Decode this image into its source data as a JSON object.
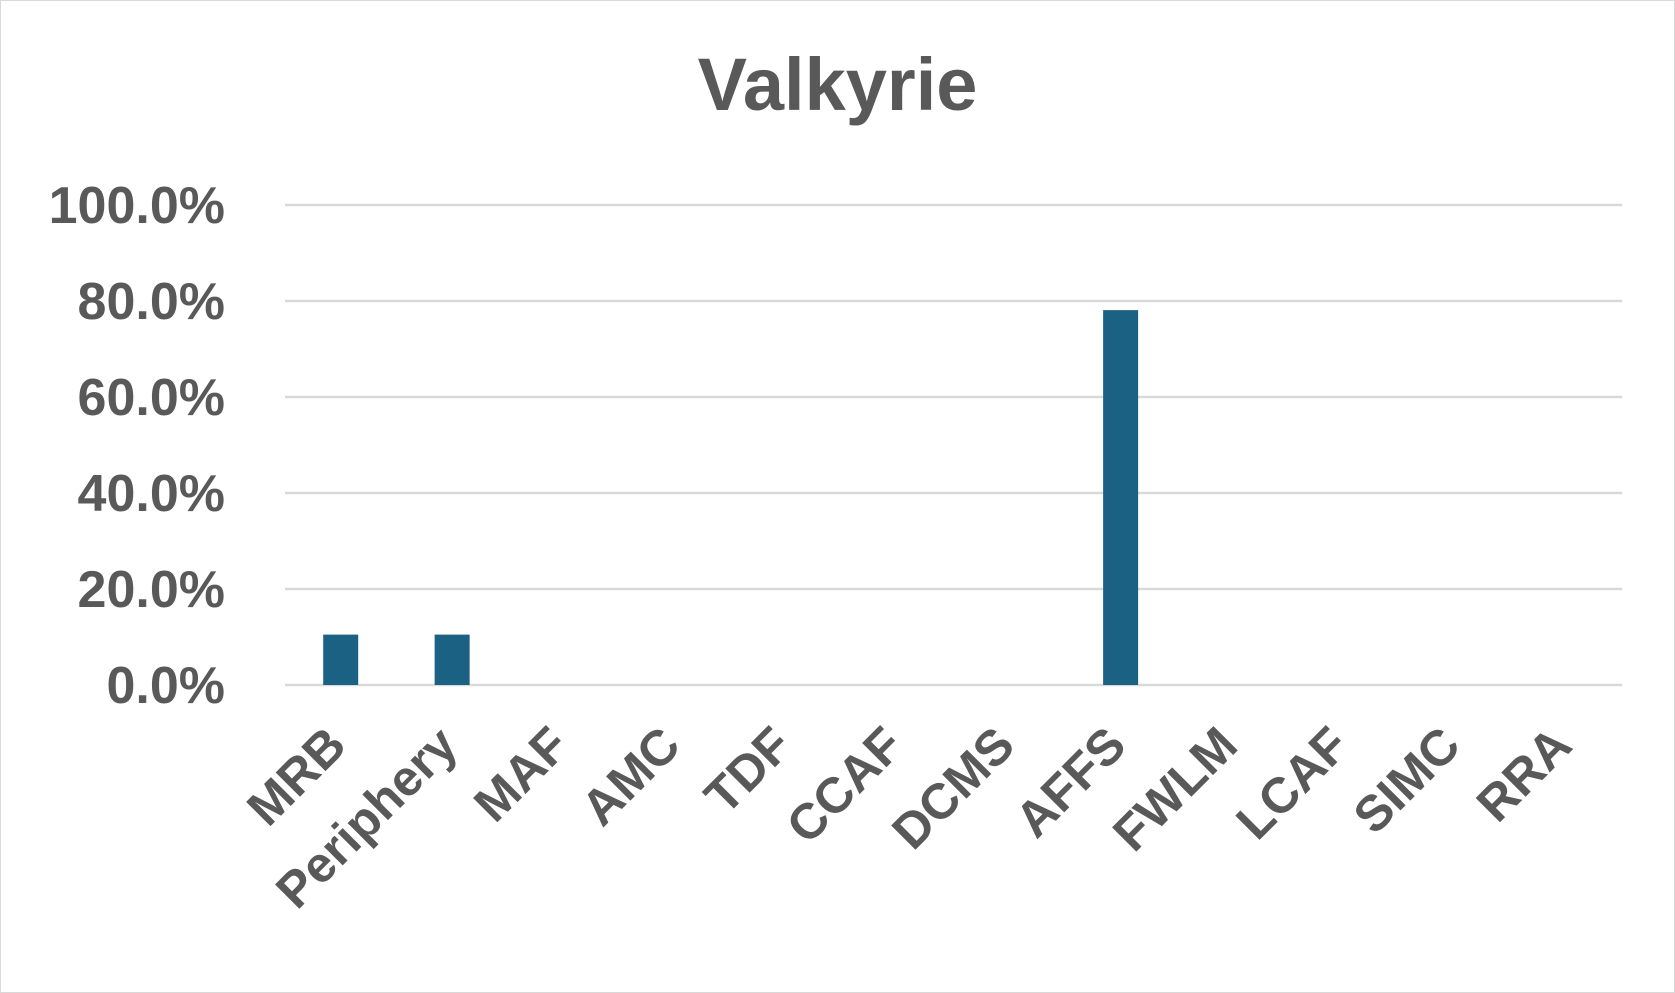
{
  "chart_data": {
    "type": "bar",
    "title": "Valkyrie",
    "xlabel": "",
    "ylabel": "",
    "categories": [
      "MRB",
      "Periphery",
      "MAF",
      "AMC",
      "TDF",
      "CCAF",
      "DCMS",
      "AFFS",
      "FWLM",
      "LCAF",
      "SIMC",
      "RRA"
    ],
    "series": [
      {
        "values": [
          10.5,
          10.5,
          0,
          0,
          0,
          0,
          0,
          78.1,
          0,
          0,
          0,
          0
        ]
      }
    ],
    "ylim": [
      0,
      100
    ],
    "yticks": [
      "0.0%",
      "20.0%",
      "40.0%",
      "60.0%",
      "80.0%",
      "100.0%"
    ],
    "grid": true,
    "legend": "none",
    "colors": {
      "bar": "#1b6183",
      "grid": "#d9d9d9",
      "text": "#595959"
    }
  }
}
